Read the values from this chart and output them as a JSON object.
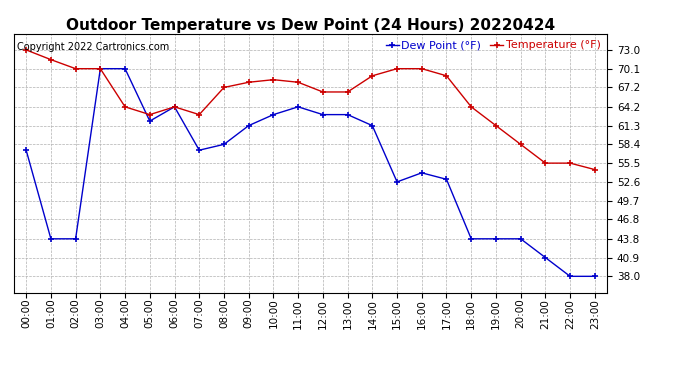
{
  "title": "Outdoor Temperature vs Dew Point (24 Hours) 20220424",
  "copyright": "Copyright 2022 Cartronics.com",
  "legend_dew": "Dew Point (°F)",
  "legend_temp": "Temperature (°F)",
  "hours": [
    0,
    1,
    2,
    3,
    4,
    5,
    6,
    7,
    8,
    9,
    10,
    11,
    12,
    13,
    14,
    15,
    16,
    17,
    18,
    19,
    20,
    21,
    22,
    23
  ],
  "temperature": [
    73.0,
    71.5,
    70.1,
    70.1,
    64.2,
    63.0,
    64.2,
    63.0,
    67.2,
    68.0,
    68.4,
    68.0,
    66.5,
    66.5,
    69.0,
    70.1,
    70.1,
    69.0,
    64.2,
    61.3,
    58.4,
    55.5,
    55.5,
    54.5
  ],
  "dew_point": [
    57.5,
    43.8,
    43.8,
    70.1,
    70.1,
    62.0,
    64.2,
    57.5,
    58.4,
    61.3,
    63.0,
    64.2,
    63.0,
    63.0,
    61.3,
    52.6,
    54.0,
    53.0,
    43.8,
    43.8,
    43.8,
    40.9,
    38.0,
    38.0
  ],
  "ylim_min": 35.5,
  "ylim_max": 75.5,
  "yticks": [
    38.0,
    40.9,
    43.8,
    46.8,
    49.7,
    52.6,
    55.5,
    58.4,
    61.3,
    64.2,
    67.2,
    70.1,
    73.0
  ],
  "temp_color": "#cc0000",
  "dew_color": "#0000cc",
  "bg_color": "#ffffff",
  "grid_color": "#b0b0b0",
  "title_fontsize": 11,
  "copyright_fontsize": 7,
  "legend_fontsize": 8,
  "tick_fontsize": 7.5
}
